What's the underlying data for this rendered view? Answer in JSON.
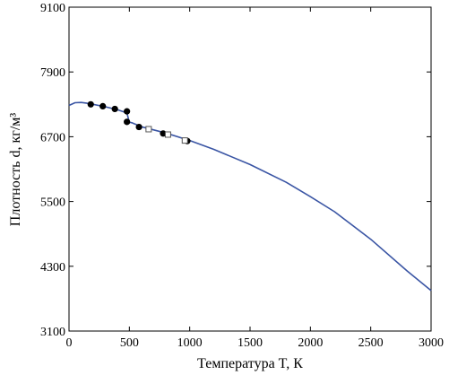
{
  "chart_data": {
    "type": "line",
    "xlabel": "Температура T, К",
    "ylabel": "Плотность d, кг/м³",
    "xlim": [
      0,
      3000
    ],
    "ylim": [
      3100,
      9100
    ],
    "x_ticks": [
      0,
      500,
      1000,
      1500,
      2000,
      2500,
      3000
    ],
    "y_ticks": [
      3100,
      4300,
      5500,
      6700,
      7900,
      9100
    ],
    "grid": false,
    "legend": "none",
    "colors": {
      "line": "#3a55a4",
      "markers": "#000000"
    },
    "series": [
      {
        "marker": "line",
        "x": [
          0,
          50,
          100,
          150,
          200,
          300,
          400,
          480,
          500,
          520,
          600,
          800,
          1000,
          1200,
          1500,
          1800,
          2000,
          2200,
          2500,
          2800,
          3000
        ],
        "y": [
          7280,
          7330,
          7335,
          7320,
          7300,
          7255,
          7200,
          7140,
          6970,
          6960,
          6885,
          6770,
          6630,
          6465,
          6185,
          5855,
          5590,
          5310,
          4800,
          4215,
          3850
        ]
      },
      {
        "marker": "filled-circle",
        "x": [
          180,
          280,
          380,
          480,
          480,
          580,
          780,
          980
        ],
        "y": [
          7300,
          7265,
          7215,
          7170,
          6975,
          6880,
          6760,
          6620
        ]
      },
      {
        "marker": "open-square",
        "x": [
          660,
          820,
          960
        ],
        "y": [
          6840,
          6740,
          6630
        ]
      }
    ]
  }
}
